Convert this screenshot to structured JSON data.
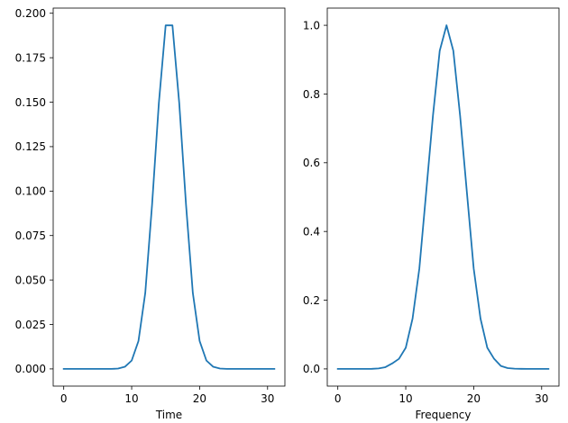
{
  "chart_data": [
    {
      "type": "line",
      "title": "",
      "xlabel": "Time",
      "ylabel": "",
      "xlim": [
        -1.55,
        32.55
      ],
      "ylim": [
        -0.00966,
        0.2029
      ],
      "xticks": [
        0,
        10,
        20,
        30
      ],
      "xtick_labels": [
        "0",
        "10",
        "20",
        "30"
      ],
      "yticks": [
        0.0,
        0.025,
        0.05,
        0.075,
        0.1,
        0.125,
        0.15,
        0.175,
        0.2
      ],
      "ytick_labels": [
        "0.000",
        "0.025",
        "0.050",
        "0.075",
        "0.100",
        "0.125",
        "0.150",
        "0.175",
        "0.200"
      ],
      "grid": false,
      "series": [
        {
          "color": "#1f77b4",
          "x": [
            0,
            1,
            2,
            3,
            4,
            5,
            6,
            7,
            8,
            9,
            10,
            11,
            12,
            13,
            14,
            15,
            16,
            17,
            18,
            19,
            20,
            21,
            22,
            23,
            24,
            25,
            26,
            27,
            28,
            29,
            30,
            31
          ],
          "y": [
            0,
            0,
            0,
            0,
            0,
            0,
            0,
            0,
            0.0002,
            0.0012,
            0.0047,
            0.0157,
            0.0427,
            0.0923,
            0.1495,
            0.1932,
            0.1932,
            0.1495,
            0.0923,
            0.0427,
            0.0157,
            0.0047,
            0.0012,
            0.0002,
            0,
            0,
            0,
            0,
            0,
            0,
            0,
            0
          ]
        }
      ]
    },
    {
      "type": "line",
      "title": "",
      "xlabel": "Frequency",
      "ylabel": "",
      "xlim": [
        -1.55,
        32.55
      ],
      "ylim": [
        -0.05,
        1.05
      ],
      "xticks": [
        0,
        10,
        20,
        30
      ],
      "xtick_labels": [
        "0",
        "10",
        "20",
        "30"
      ],
      "yticks": [
        0.0,
        0.2,
        0.4,
        0.6,
        0.8,
        1.0
      ],
      "ytick_labels": [
        "0.0",
        "0.2",
        "0.4",
        "0.6",
        "0.8",
        "1.0"
      ],
      "grid": false,
      "series": [
        {
          "color": "#1f77b4",
          "x": [
            0,
            1,
            2,
            3,
            4,
            5,
            6,
            7,
            8,
            9,
            10,
            11,
            12,
            13,
            14,
            15,
            16,
            17,
            18,
            19,
            20,
            21,
            22,
            23,
            24,
            25,
            26,
            27,
            28,
            29,
            30,
            31
          ],
          "y": [
            0,
            0,
            0,
            0,
            0,
            0.0003,
            0.0014,
            0.0051,
            0.0159,
            0.0294,
            0.0616,
            0.1464,
            0.2921,
            0.5131,
            0.7366,
            0.9259,
            1.0,
            0.9259,
            0.7366,
            0.5131,
            0.2921,
            0.1464,
            0.0616,
            0.0294,
            0.0087,
            0.0024,
            0.0007,
            0.0002,
            0,
            0,
            0,
            0
          ]
        }
      ]
    }
  ]
}
